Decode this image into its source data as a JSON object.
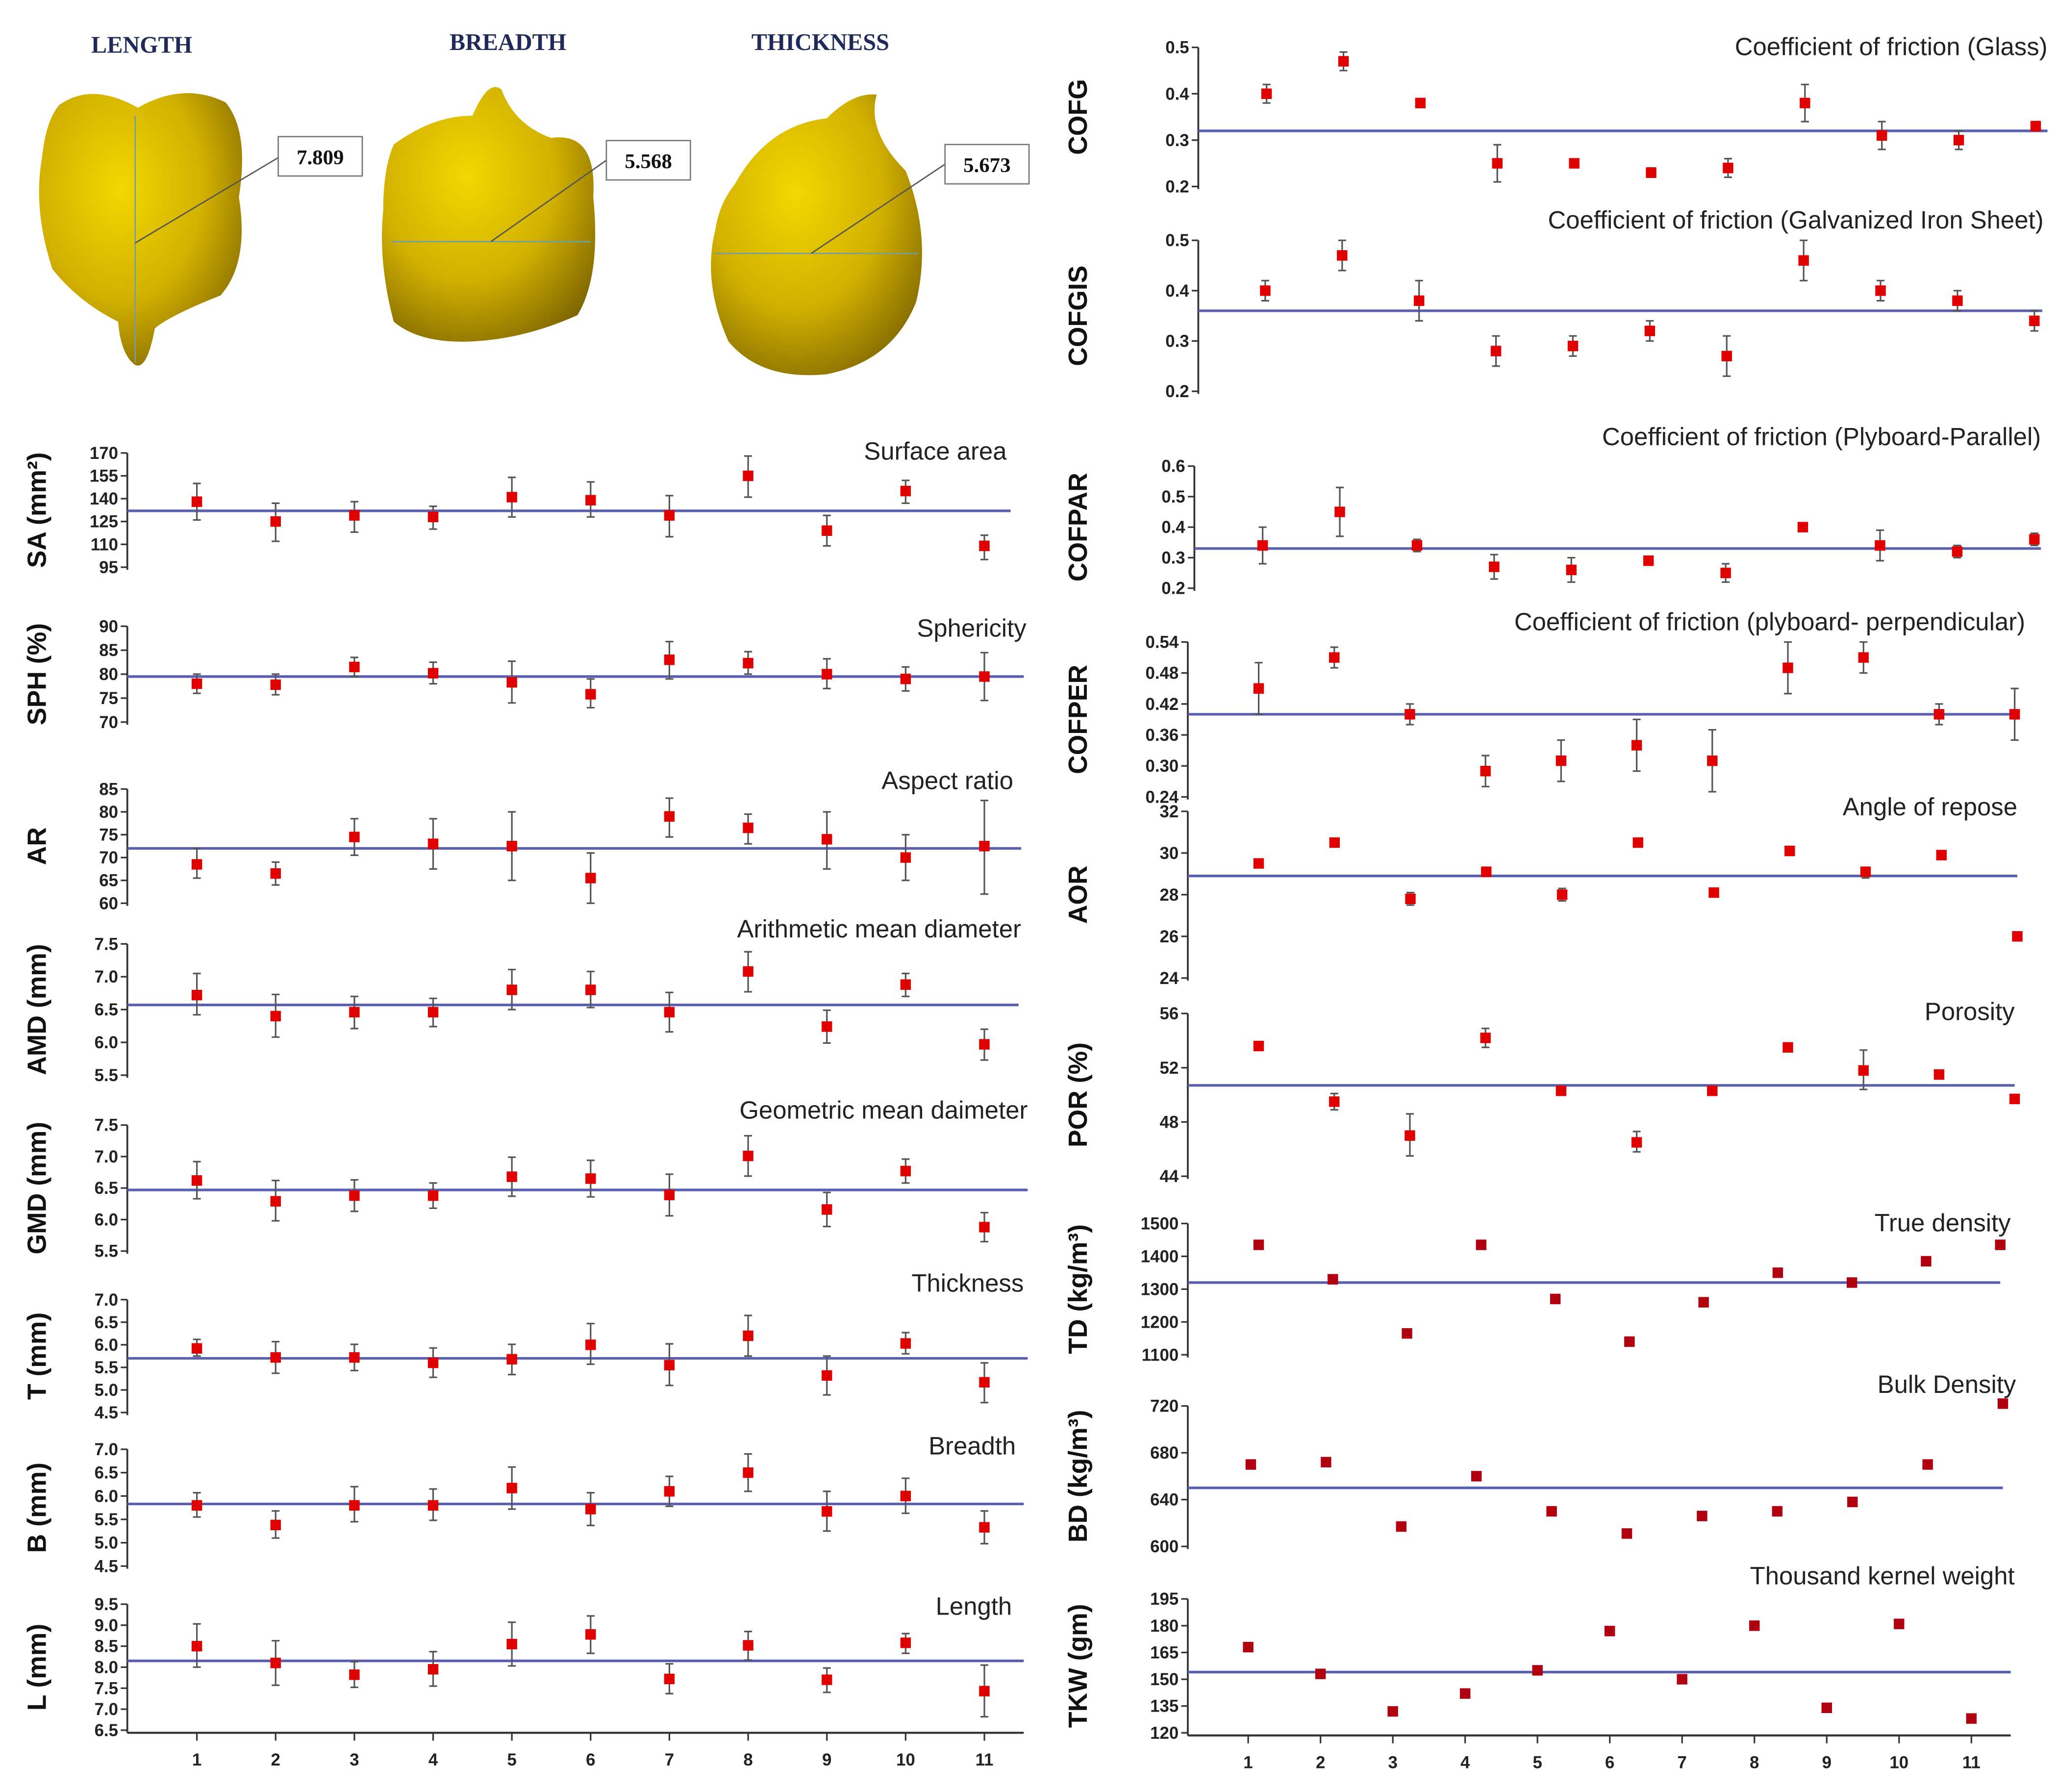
{
  "seed_views": [
    {
      "label": "LENGTH",
      "value": "7.809"
    },
    {
      "label": "BREADTH",
      "value": "5.568"
    },
    {
      "label": "THICKNESS",
      "value": "5.673"
    }
  ],
  "colors": {
    "marker": "#e00000",
    "mean_line": "#5a5fb0",
    "error_bar": "#555555",
    "seed": "#d4b000"
  },
  "chart_data": [
    {
      "id": "SA",
      "type": "scatter",
      "title": "Surface area",
      "ylabel": "SA (mm²)",
      "ylim": [
        95,
        170
      ],
      "yticks": [
        95,
        110,
        125,
        140,
        155,
        170
      ],
      "mean": 132,
      "values": [
        138,
        125,
        129,
        128,
        141,
        139,
        129,
        155,
        119,
        145,
        109
      ],
      "err_low": [
        126,
        112,
        118,
        120,
        128,
        128,
        115,
        141,
        109,
        137,
        100
      ],
      "err_high": [
        150,
        137,
        138,
        135,
        154,
        151,
        142,
        168,
        129,
        152,
        116
      ]
    },
    {
      "id": "SPH",
      "type": "scatter",
      "title": "Sphericity",
      "ylabel": "SPH (%)",
      "ylim": [
        70,
        90
      ],
      "yticks": [
        70,
        75,
        80,
        85,
        90
      ],
      "mean": 79.5,
      "values": [
        78,
        77.8,
        81.5,
        80.2,
        78.3,
        75.8,
        83,
        82.3,
        80,
        79,
        79.5
      ],
      "err_low": [
        76,
        75.7,
        79.5,
        78,
        74,
        73,
        79,
        80,
        77,
        76.5,
        74.5
      ],
      "err_high": [
        80,
        80,
        83.5,
        82.5,
        82.7,
        79,
        86.8,
        84.7,
        83.2,
        81.5,
        84.5
      ]
    },
    {
      "id": "AR",
      "type": "scatter",
      "title": "Aspect ratio",
      "ylabel": "AR",
      "ylim": [
        60,
        85
      ],
      "yticks": [
        60,
        65,
        70,
        75,
        80,
        85
      ],
      "mean": 72,
      "values": [
        68.5,
        66.5,
        74.5,
        73,
        72.5,
        65.5,
        79,
        76.5,
        74,
        70,
        72.5
      ],
      "err_low": [
        65.5,
        64,
        70.5,
        67.5,
        65,
        60,
        74.5,
        73,
        67.5,
        65,
        62
      ],
      "err_high": [
        72,
        69,
        78.5,
        78.5,
        80,
        71,
        83,
        79.5,
        80,
        75,
        82.5
      ]
    },
    {
      "id": "AMD",
      "type": "scatter",
      "title": "Arithmetic mean diameter",
      "ylabel": "AMD (mm)",
      "ylim": [
        5.5,
        7.5
      ],
      "yticks": [
        "5.5",
        "6.0",
        "6.5",
        "7.0",
        "7.5"
      ],
      "mean": 6.57,
      "values": [
        6.72,
        6.4,
        6.46,
        6.46,
        6.8,
        6.8,
        6.46,
        7.08,
        6.24,
        6.88,
        5.97
      ],
      "err_low": [
        6.42,
        6.08,
        6.21,
        6.24,
        6.5,
        6.53,
        6.16,
        6.77,
        5.99,
        6.7,
        5.73
      ],
      "err_high": [
        7.05,
        6.73,
        6.7,
        6.67,
        7.11,
        7.08,
        6.76,
        7.38,
        6.49,
        7.05,
        6.2
      ]
    },
    {
      "id": "GMD",
      "type": "scatter",
      "title": "Geometric mean daimeter",
      "ylabel": "GMD (mm)",
      "ylim": [
        5.5,
        7.5
      ],
      "yticks": [
        "5.5",
        "6.0",
        "6.5",
        "7.0",
        "7.5"
      ],
      "mean": 6.47,
      "values": [
        6.62,
        6.29,
        6.38,
        6.38,
        6.68,
        6.65,
        6.39,
        7.01,
        6.16,
        6.77,
        5.88
      ],
      "err_low": [
        6.33,
        5.98,
        6.13,
        6.18,
        6.37,
        6.36,
        6.06,
        6.69,
        5.89,
        6.58,
        5.65
      ],
      "err_high": [
        6.92,
        6.62,
        6.63,
        6.58,
        6.99,
        6.94,
        6.72,
        7.33,
        6.43,
        6.96,
        6.11
      ]
    },
    {
      "id": "T",
      "type": "scatter",
      "title": "Thickness",
      "ylabel": "T (mm)",
      "ylim": [
        4.5,
        7.0
      ],
      "yticks": [
        "4.5",
        "5.0",
        "5.5",
        "6.0",
        "6.5",
        "7.0"
      ],
      "mean": 5.7,
      "values": [
        5.92,
        5.72,
        5.72,
        5.6,
        5.68,
        6.0,
        5.55,
        6.2,
        5.32,
        6.03,
        5.17
      ],
      "err_low": [
        5.75,
        5.37,
        5.43,
        5.28,
        5.34,
        5.57,
        5.1,
        5.75,
        4.89,
        5.8,
        4.72
      ],
      "err_high": [
        6.12,
        6.07,
        6.01,
        5.93,
        6.01,
        6.47,
        6.02,
        6.65,
        5.75,
        6.27,
        5.6
      ]
    },
    {
      "id": "B",
      "type": "scatter",
      "title": "Breadth",
      "ylabel": "B (mm)",
      "ylim": [
        4.5,
        7.0
      ],
      "yticks": [
        "4.5",
        "5.0",
        "5.5",
        "6.0",
        "6.5",
        "7.0"
      ],
      "mean": 5.83,
      "values": [
        5.8,
        5.38,
        5.8,
        5.8,
        6.17,
        5.72,
        6.1,
        6.5,
        5.67,
        6.0,
        5.33
      ],
      "err_low": [
        5.55,
        5.1,
        5.45,
        5.48,
        5.72,
        5.37,
        5.78,
        6.1,
        5.25,
        5.63,
        4.98
      ],
      "err_high": [
        6.07,
        5.68,
        6.2,
        6.15,
        6.62,
        6.07,
        6.42,
        6.9,
        6.1,
        6.38,
        5.68
      ]
    },
    {
      "id": "L",
      "type": "scatter",
      "title": "Length",
      "ylabel": "L (mm)",
      "ylim": [
        6.5,
        9.5
      ],
      "yticks": [
        "6.5",
        "7.0",
        "7.5",
        "8.0",
        "8.5",
        "9.0",
        "9.5"
      ],
      "mean": 8.15,
      "values": [
        8.5,
        8.1,
        7.82,
        7.95,
        8.55,
        8.78,
        7.72,
        8.52,
        7.7,
        8.58,
        7.43
      ],
      "err_low": [
        8.0,
        7.57,
        7.52,
        7.55,
        8.03,
        8.33,
        7.37,
        8.17,
        7.4,
        8.33,
        6.82
      ],
      "err_high": [
        9.03,
        8.63,
        8.13,
        8.37,
        9.07,
        9.22,
        8.08,
        8.85,
        7.98,
        8.8,
        8.05
      ],
      "xticks": [
        "1",
        "2",
        "3",
        "4",
        "5",
        "6",
        "7",
        "8",
        "9",
        "10",
        "11"
      ]
    },
    {
      "id": "COFG",
      "type": "scatter",
      "title": "Coefficient of friction (Glass)",
      "ylabel": "COFG",
      "ylim": [
        0.2,
        0.5
      ],
      "yticks": [
        "0.2",
        "0.3",
        "0.4",
        "0.5"
      ],
      "mean": 0.32,
      "values": [
        0.4,
        0.47,
        0.38,
        0.25,
        0.25,
        0.23,
        0.24,
        0.38,
        0.31,
        0.3,
        0.33
      ],
      "err_low": [
        0.38,
        0.45,
        0.375,
        0.21,
        0.245,
        0.22,
        0.22,
        0.34,
        0.28,
        0.28,
        0.32
      ],
      "err_high": [
        0.42,
        0.49,
        0.385,
        0.29,
        0.255,
        0.24,
        0.26,
        0.42,
        0.34,
        0.32,
        0.34
      ]
    },
    {
      "id": "COFGIS",
      "type": "scatter",
      "title": "Coefficient of friction (Galvanized Iron Sheet)",
      "ylabel": "COFGIS",
      "ylim": [
        0.2,
        0.5
      ],
      "yticks": [
        "0.2",
        "0.3",
        "0.4",
        "0.5"
      ],
      "mean": 0.36,
      "values": [
        0.4,
        0.47,
        0.38,
        0.28,
        0.29,
        0.32,
        0.27,
        0.46,
        0.4,
        0.38,
        0.34
      ],
      "err_low": [
        0.38,
        0.44,
        0.34,
        0.25,
        0.27,
        0.3,
        0.23,
        0.42,
        0.38,
        0.36,
        0.32
      ],
      "err_high": [
        0.42,
        0.5,
        0.42,
        0.31,
        0.31,
        0.34,
        0.31,
        0.5,
        0.42,
        0.4,
        0.36
      ]
    },
    {
      "id": "COFPAR",
      "type": "scatter",
      "title": "Coefficient of friction (Plyboard-Parallel)",
      "ylabel": "COFPAR",
      "ylim": [
        0.2,
        0.6
      ],
      "yticks": [
        "0.2",
        "0.3",
        "0.4",
        "0.5",
        "0.6"
      ],
      "mean": 0.33,
      "values": [
        0.34,
        0.45,
        0.34,
        0.27,
        0.26,
        0.29,
        0.25,
        0.4,
        0.34,
        0.32,
        0.36
      ],
      "err_low": [
        0.28,
        0.37,
        0.32,
        0.23,
        0.22,
        0.285,
        0.22,
        0.395,
        0.29,
        0.3,
        0.34
      ],
      "err_high": [
        0.4,
        0.53,
        0.36,
        0.31,
        0.3,
        0.295,
        0.28,
        0.405,
        0.39,
        0.34,
        0.38
      ]
    },
    {
      "id": "COFPER",
      "type": "scatter",
      "title": "Coefficient of friction (plyboard- perpendicular)",
      "ylabel": "COFPER",
      "ylim": [
        0.24,
        0.54
      ],
      "yticks": [
        "0.24",
        "0.30",
        "0.36",
        "0.42",
        "0.48",
        "0.54"
      ],
      "mean": 0.4,
      "values": [
        0.45,
        0.51,
        0.4,
        0.29,
        0.31,
        0.34,
        0.31,
        0.49,
        0.51,
        0.4,
        0.4
      ],
      "err_low": [
        0.4,
        0.49,
        0.38,
        0.26,
        0.27,
        0.29,
        0.25,
        0.44,
        0.48,
        0.38,
        0.35
      ],
      "err_high": [
        0.5,
        0.53,
        0.42,
        0.32,
        0.35,
        0.39,
        0.37,
        0.54,
        0.54,
        0.42,
        0.45
      ]
    },
    {
      "id": "AOR",
      "type": "scatter",
      "title": "Angle of repose",
      "ylabel": "AOR",
      "ylim": [
        24,
        32
      ],
      "yticks": [
        "24",
        "26",
        "28",
        "30",
        "32"
      ],
      "mean": 28.9,
      "values": [
        29.5,
        30.5,
        27.8,
        29.1,
        28.0,
        30.5,
        28.1,
        30.1,
        29.1,
        29.9,
        26.0
      ],
      "err_low": [
        29.3,
        30.3,
        27.5,
        28.9,
        27.7,
        30.3,
        27.9,
        29.9,
        28.8,
        29.7,
        25.8
      ],
      "err_high": [
        29.7,
        30.7,
        28.1,
        29.3,
        28.3,
        30.7,
        28.3,
        30.3,
        29.3,
        30.1,
        26.2
      ]
    },
    {
      "id": "POR",
      "type": "scatter",
      "title": "Porosity",
      "ylabel": "POR (%)",
      "ylim": [
        44,
        56
      ],
      "yticks": [
        "44",
        "48",
        "52",
        "56"
      ],
      "mean": 50.7,
      "values": [
        53.6,
        49.5,
        47.0,
        54.2,
        50.3,
        46.5,
        50.3,
        53.5,
        51.8,
        51.5,
        49.7
      ],
      "err_low": [
        53.4,
        48.9,
        45.5,
        53.5,
        50.0,
        45.8,
        50.0,
        53.2,
        50.4,
        51.3,
        49.4
      ],
      "err_high": [
        53.8,
        50.1,
        48.6,
        54.9,
        50.6,
        47.3,
        50.6,
        53.8,
        53.3,
        51.7,
        50.0
      ]
    },
    {
      "id": "TD",
      "type": "scatter",
      "title": "True density",
      "ylabel": "TD (kg/m³)",
      "ylim": [
        1100,
        1500
      ],
      "yticks": [
        "1100",
        "1200",
        "1300",
        "1400",
        "1500"
      ],
      "mean": 1320,
      "values": [
        1435,
        1330,
        1165,
        1435,
        1270,
        1140,
        1260,
        1350,
        1320,
        1385,
        1435
      ]
    },
    {
      "id": "BD",
      "type": "scatter",
      "title": "Bulk Density",
      "ylabel": "BD (kg/m³)",
      "ylim": [
        600,
        720
      ],
      "yticks": [
        "600",
        "640",
        "680",
        "720"
      ],
      "mean": 650,
      "values": [
        670,
        672,
        617,
        660,
        630,
        611,
        626,
        630,
        638,
        670,
        722
      ]
    },
    {
      "id": "TKW",
      "type": "scatter",
      "title": "Thousand kernel weight",
      "ylabel": "TKW (gm)",
      "ylim": [
        120,
        195
      ],
      "yticks": [
        "120",
        "135",
        "150",
        "165",
        "180",
        "195"
      ],
      "mean": 154,
      "values": [
        168,
        153,
        132,
        142,
        155,
        177,
        150,
        180,
        134,
        181,
        128
      ],
      "xticks": [
        "1",
        "2",
        "3",
        "4",
        "5",
        "6",
        "7",
        "8",
        "9",
        "10",
        "11"
      ]
    }
  ]
}
